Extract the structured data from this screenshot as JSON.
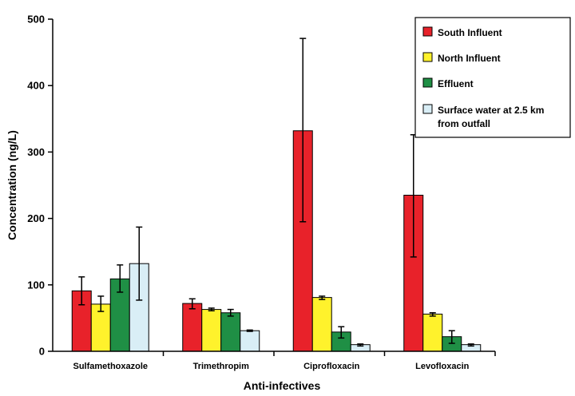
{
  "chart_data": {
    "type": "bar",
    "xlabel": "Anti-infectives",
    "ylabel": "Concentration (ng/L)",
    "ylim": [
      0,
      500
    ],
    "yticks": [
      "0",
      "100",
      "200",
      "300",
      "400",
      "500"
    ],
    "grid": false,
    "legend_position": "top-right",
    "categories": [
      "Sulfamethoxazole",
      "Trimethropim",
      "Ciprofloxacin",
      "Levofloxacin"
    ],
    "series": [
      {
        "name": "South Influent",
        "color": "#e8222a",
        "values": [
          91,
          72,
          332,
          235
        ],
        "err_low": [
          21,
          8,
          137,
          93
        ],
        "err_high": [
          21,
          7,
          139,
          91
        ]
      },
      {
        "name": "North Influent",
        "color": "#fff22c",
        "values": [
          71,
          63,
          81,
          56
        ],
        "err_low": [
          11,
          2,
          3,
          3
        ],
        "err_high": [
          12,
          2,
          2,
          2
        ]
      },
      {
        "name": "Effluent",
        "color": "#1f8f45",
        "values": [
          109,
          58,
          29,
          22
        ],
        "err_low": [
          20,
          5,
          9,
          10
        ],
        "err_high": [
          21,
          5,
          8,
          9
        ]
      },
      {
        "name": "Surface water at 2.5 km from outfall",
        "color": "#d9eef6",
        "values": [
          132,
          31,
          10,
          10
        ],
        "err_low": [
          55,
          1,
          2,
          2
        ],
        "err_high": [
          55,
          1,
          1,
          1
        ]
      }
    ],
    "legend_labels": [
      [
        "South Influent"
      ],
      [
        "North Influent"
      ],
      [
        "Effluent"
      ],
      [
        "Surface water at 2.5 km",
        "from outfall"
      ]
    ]
  }
}
